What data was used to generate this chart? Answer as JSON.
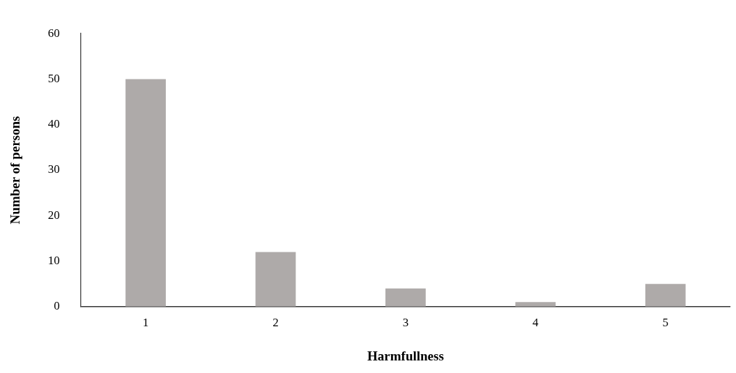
{
  "chart_data": {
    "type": "bar",
    "xlabel": "Harmfullness",
    "ylabel": "Number of persons",
    "categories": [
      "1",
      "2",
      "3",
      "4",
      "5"
    ],
    "values": [
      50,
      12,
      4,
      1,
      5
    ],
    "color": "#aeaaa9",
    "ylim": [
      0,
      60
    ],
    "yticks": [
      0,
      10,
      20,
      30,
      40,
      50,
      60
    ],
    "grid": false,
    "legend": false
  }
}
